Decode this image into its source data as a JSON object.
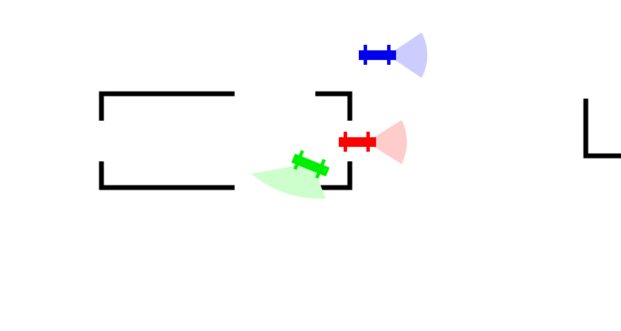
{
  "scene": {
    "background_color": "#ffffff",
    "wall_color": "#000000"
  },
  "robots": [
    {
      "name": "blue",
      "body_color": "#0000ee",
      "sensor_color": "#ccccff",
      "sensor_icon": "sensor-cone-icon",
      "robot_icon": "robot-car-icon"
    },
    {
      "name": "red",
      "body_color": "#ff0000",
      "sensor_color": "#ffcccc",
      "sensor_icon": "sensor-cone-icon",
      "robot_icon": "robot-car-icon"
    },
    {
      "name": "green",
      "body_color": "#00ee00",
      "sensor_color": "#ccffcc",
      "sensor_icon": "sensor-cone-icon",
      "robot_icon": "robot-car-icon"
    }
  ]
}
